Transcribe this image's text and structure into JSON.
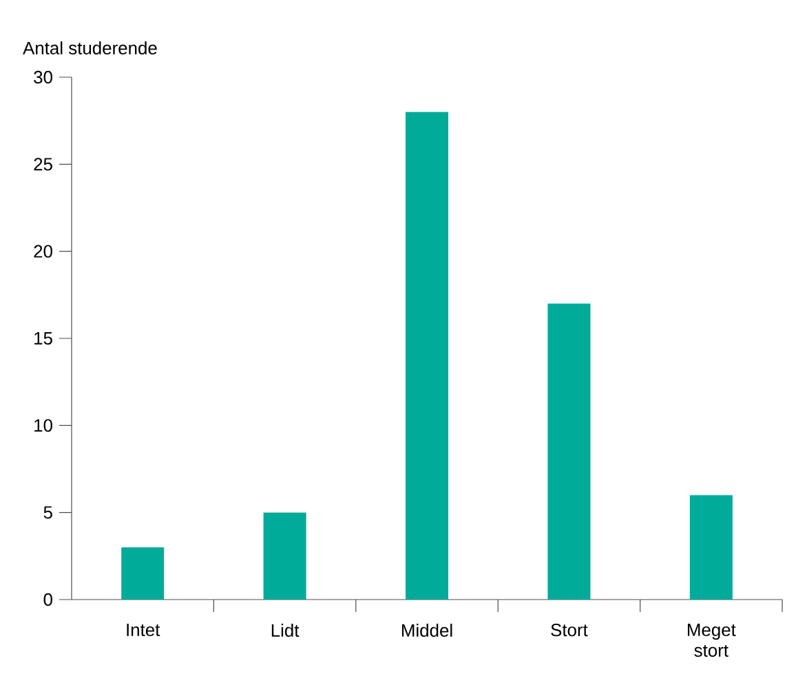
{
  "chart_data": {
    "type": "bar",
    "ylabel": "Antal studerende",
    "categories": [
      "Intet",
      "Lidt",
      "Middel",
      "Stort",
      "Meget stort"
    ],
    "values": [
      3,
      5,
      28,
      17,
      6
    ],
    "color": "#00ab9a",
    "ylim": [
      0,
      30
    ],
    "yticks": [
      0,
      5,
      10,
      15,
      20,
      25,
      30
    ]
  }
}
